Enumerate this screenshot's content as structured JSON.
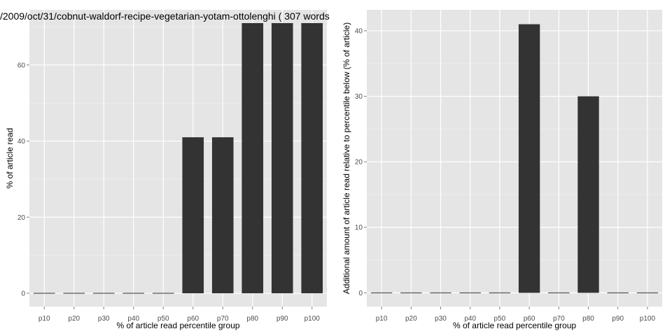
{
  "title": "/2009/oct/31/cobnut-waldorf-recipe-vegetarian-yotam-ottolenghi ( 307 words",
  "colors": {
    "panel_bg": "#e5e5e5",
    "grid": "#ffffff",
    "bar": "#333333",
    "tick": "#4d4d4d"
  },
  "chart_data": [
    {
      "type": "bar",
      "title": "/2009/oct/31/cobnut-waldorf-recipe-vegetarian-yotam-ottolenghi ( 307 words",
      "categories": [
        "p10",
        "p20",
        "p30",
        "p40",
        "p50",
        "p60",
        "p70",
        "p80",
        "p90",
        "p100"
      ],
      "values": [
        0,
        0,
        0,
        0,
        0,
        41,
        41,
        71,
        71,
        71
      ],
      "xlabel": "% of article read percentile group",
      "ylabel": "% of article read",
      "ylim": [
        -3.5,
        74.5
      ],
      "yticks": [
        0,
        20,
        40,
        60
      ],
      "grid": true,
      "legend": "none"
    },
    {
      "type": "bar",
      "title": "",
      "categories": [
        "p10",
        "p20",
        "p30",
        "p40",
        "p50",
        "p60",
        "p70",
        "p80",
        "p90",
        "p100"
      ],
      "values": [
        0,
        0,
        0,
        0,
        0,
        41,
        0,
        30,
        0,
        0
      ],
      "xlabel": "% of article read percentile group",
      "ylabel": "Additional amount of article read relative to percentile below (% of article)",
      "ylim": [
        -2.1,
        43.2
      ],
      "yticks": [
        0,
        10,
        20,
        30,
        40
      ],
      "grid": true,
      "legend": "none"
    }
  ]
}
